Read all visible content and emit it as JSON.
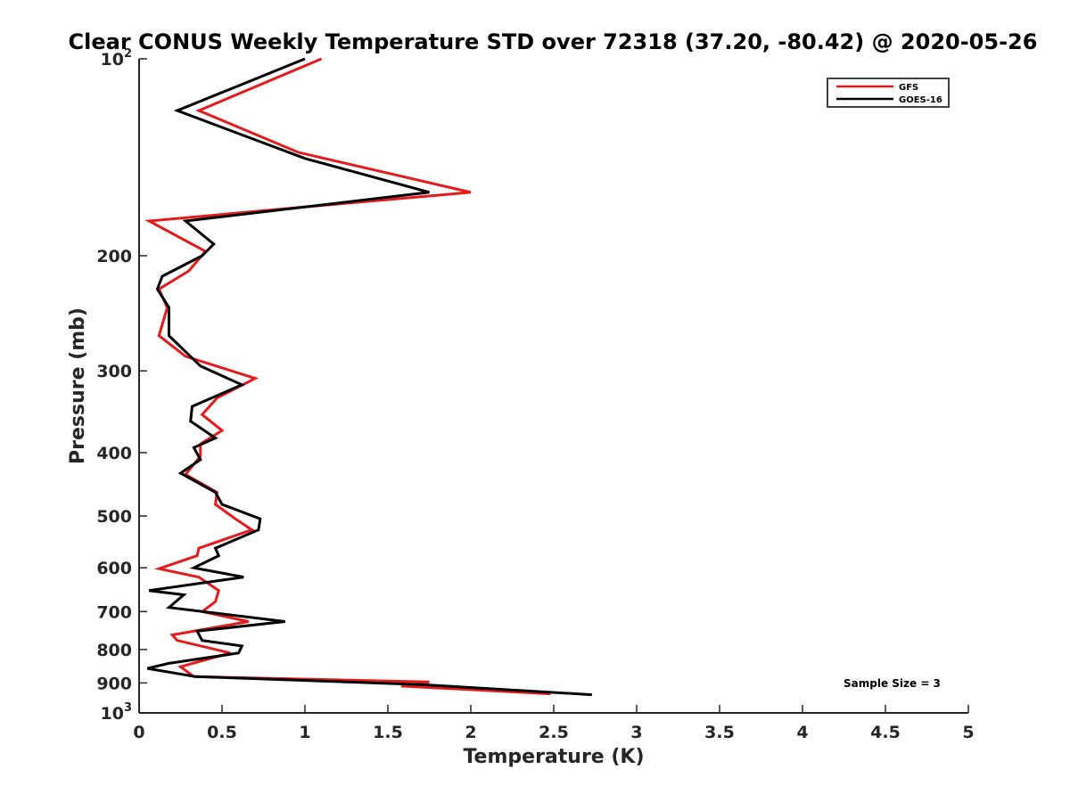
{
  "chart_data": {
    "type": "line",
    "title": "Clear CONUS Weekly Temperature STD over 72318 (37.20, -80.42) @ 2020-05-26",
    "xlabel": "Temperature (K)",
    "ylabel": "Pressure (mb)",
    "xlim": [
      0,
      5
    ],
    "ylim": [
      100,
      1000
    ],
    "y_scale": "log",
    "y_reversed": true,
    "x_ticks": [
      "0",
      "0.5",
      "1",
      "1.5",
      "2",
      "2.5",
      "3",
      "3.5",
      "4",
      "4.5",
      "5"
    ],
    "y_ticks": [
      {
        "value": 100,
        "base": "10",
        "exp": "2"
      },
      {
        "value": 200,
        "label": "200"
      },
      {
        "value": 300,
        "label": "300"
      },
      {
        "value": 400,
        "label": "400"
      },
      {
        "value": 500,
        "label": "500"
      },
      {
        "value": 600,
        "label": "600"
      },
      {
        "value": 700,
        "label": "700"
      },
      {
        "value": 800,
        "label": "800"
      },
      {
        "value": 900,
        "label": "900"
      },
      {
        "value": 1000,
        "base": "10",
        "exp": "3"
      }
    ],
    "grid": false,
    "legend_position": "top-right",
    "series": [
      {
        "name": "GFS",
        "color": "#e41a1c",
        "points": [
          [
            1.1,
            100
          ],
          [
            0.36,
            120
          ],
          [
            0.96,
            139
          ],
          [
            2.0,
            160
          ],
          [
            1.05,
            168
          ],
          [
            0.06,
            177
          ],
          [
            0.4,
            197
          ],
          [
            0.3,
            211
          ],
          [
            0.12,
            225
          ],
          [
            0.17,
            240
          ],
          [
            0.12,
            265
          ],
          [
            0.28,
            285
          ],
          [
            0.7,
            308
          ],
          [
            0.47,
            330
          ],
          [
            0.38,
            350
          ],
          [
            0.5,
            370
          ],
          [
            0.37,
            388
          ],
          [
            0.37,
            405
          ],
          [
            0.28,
            432
          ],
          [
            0.47,
            460
          ],
          [
            0.46,
            480
          ],
          [
            0.58,
            505
          ],
          [
            0.68,
            525
          ],
          [
            0.36,
            560
          ],
          [
            0.35,
            575
          ],
          [
            0.12,
            602
          ],
          [
            0.36,
            620
          ],
          [
            0.48,
            650
          ],
          [
            0.46,
            676
          ],
          [
            0.38,
            700
          ],
          [
            0.66,
            725
          ],
          [
            0.2,
            760
          ],
          [
            0.23,
            775
          ],
          [
            0.55,
            810
          ],
          [
            0.25,
            850
          ],
          [
            0.33,
            880
          ],
          [
            1.75,
            897
          ],
          [
            1.58,
            910
          ],
          [
            2.48,
            935
          ]
        ]
      },
      {
        "name": "GOES-16",
        "color": "#000000",
        "points": [
          [
            1.0,
            100
          ],
          [
            0.23,
            120
          ],
          [
            1.0,
            142
          ],
          [
            1.75,
            160
          ],
          [
            0.28,
            177
          ],
          [
            0.45,
            192
          ],
          [
            0.38,
            200
          ],
          [
            0.14,
            215
          ],
          [
            0.11,
            225
          ],
          [
            0.18,
            240
          ],
          [
            0.18,
            265
          ],
          [
            0.37,
            295
          ],
          [
            0.62,
            315
          ],
          [
            0.32,
            340
          ],
          [
            0.31,
            358
          ],
          [
            0.46,
            380
          ],
          [
            0.33,
            393
          ],
          [
            0.37,
            410
          ],
          [
            0.25,
            430
          ],
          [
            0.46,
            460
          ],
          [
            0.5,
            480
          ],
          [
            0.73,
            505
          ],
          [
            0.72,
            525
          ],
          [
            0.46,
            560
          ],
          [
            0.48,
            575
          ],
          [
            0.33,
            600
          ],
          [
            0.63,
            620
          ],
          [
            0.06,
            650
          ],
          [
            0.27,
            660
          ],
          [
            0.18,
            690
          ],
          [
            0.88,
            725
          ],
          [
            0.35,
            750
          ],
          [
            0.38,
            775
          ],
          [
            0.62,
            790
          ],
          [
            0.6,
            810
          ],
          [
            0.18,
            840
          ],
          [
            0.05,
            855
          ],
          [
            0.34,
            880
          ],
          [
            1.7,
            905
          ],
          [
            2.73,
            938
          ]
        ]
      }
    ],
    "annotations": [
      "Sample Size = 3"
    ]
  }
}
